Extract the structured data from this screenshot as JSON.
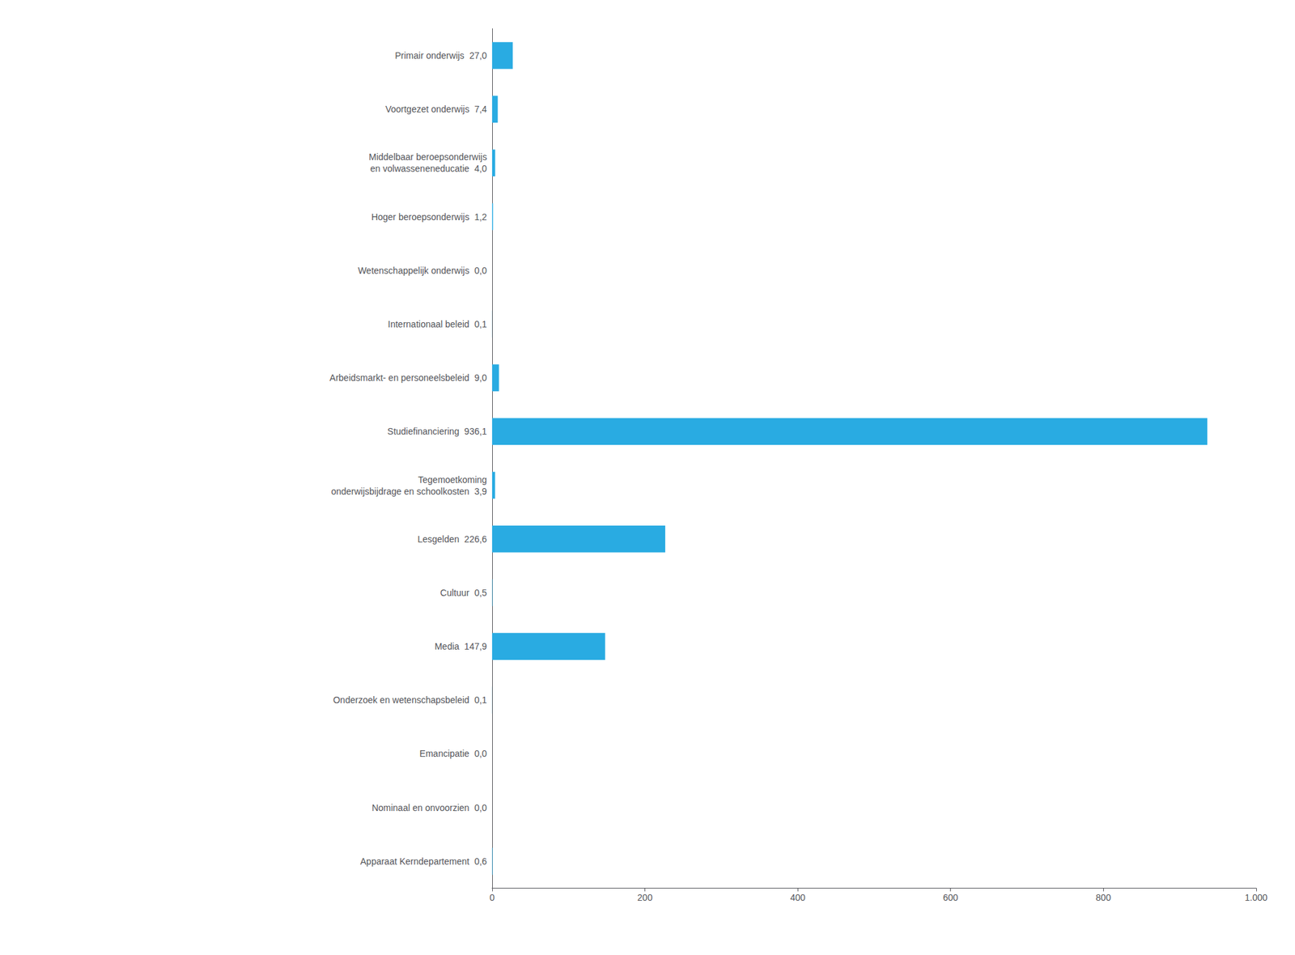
{
  "chart_data": {
    "type": "bar",
    "orientation": "horizontal",
    "categories": [
      "Primair onderwijs  27,0",
      "Voortgezet onderwijs  7,4",
      "Middelbaar beroepsonderwijs\nen volwasseneneducatie  4,0",
      "Hoger beroepsonderwijs  1,2",
      "Wetenschappelijk onderwijs  0,0",
      "Internationaal beleid  0,1",
      "Arbeidsmarkt- en personeelsbeleid  9,0",
      "Studiefinanciering  936,1",
      "Tegemoetkoming\nonderwijsbijdrage en schoolkosten  3,9",
      "Lesgelden  226,6",
      "Cultuur  0,5",
      "Media  147,9",
      "Onderzoek en wetenschapsbeleid  0,1",
      "Emancipatie  0,0",
      "Nominaal en onvoorzien  0,0",
      "Apparaat Kerndepartement  0,6"
    ],
    "values": [
      27.0,
      7.4,
      4.0,
      1.2,
      0.0,
      0.1,
      9.0,
      936.1,
      3.9,
      226.6,
      0.5,
      147.9,
      0.1,
      0.0,
      0.0,
      0.6
    ],
    "color": "#29ABE2",
    "xlim": [
      0,
      1000
    ],
    "xticks": [
      0,
      200,
      400,
      600,
      800,
      {
        "value": 1000,
        "label": "1.000"
      }
    ],
    "grid": false
  }
}
